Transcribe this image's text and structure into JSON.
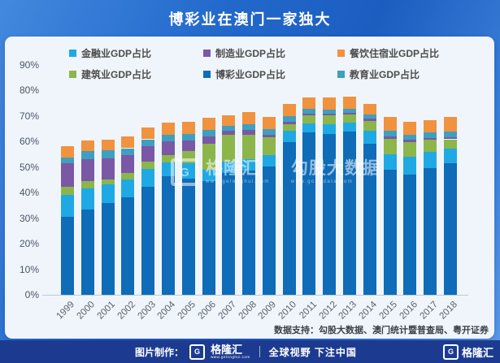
{
  "header": {
    "title": "博彩业在澳门一家独大"
  },
  "chart_data": {
    "type": "bar",
    "stacked": true,
    "title": "博彩业在澳门一家独大",
    "categories": [
      "1999",
      "2000",
      "2001",
      "2002",
      "2003",
      "2004",
      "2005",
      "2006",
      "2007",
      "2008",
      "2009",
      "2010",
      "2011",
      "2012",
      "2013",
      "2014",
      "2015",
      "2016",
      "2017",
      "2018"
    ],
    "series": [
      {
        "name": "博彩业GDP占比",
        "color": "#0e6cb8",
        "values": [
          30.5,
          33.3,
          35.8,
          38.1,
          42.4,
          46.4,
          45.5,
          44.5,
          47.7,
          48.5,
          50.3,
          59.7,
          63.6,
          63.1,
          63.8,
          59.3,
          48.9,
          47.1,
          49.6,
          51.4
        ]
      },
      {
        "name": "金融业GDP占比",
        "color": "#1fa9e4",
        "values": [
          8.7,
          8.5,
          7.6,
          7.2,
          6.9,
          5.5,
          5.9,
          4.5,
          4.3,
          4.7,
          4.5,
          4.4,
          3.5,
          3.7,
          3.7,
          4.8,
          6.2,
          7.1,
          6.4,
          6.0
        ]
      },
      {
        "name": "建筑业GDP占比",
        "color": "#8cb64a",
        "values": [
          3.0,
          2.7,
          1.9,
          2.4,
          2.8,
          2.7,
          4.8,
          10.0,
          10.6,
          9.5,
          7.0,
          2.7,
          3.1,
          3.5,
          3.0,
          3.9,
          6.1,
          5.7,
          4.6,
          3.5
        ]
      },
      {
        "name": "制造业GDP占比",
        "color": "#7a58a5",
        "values": [
          9.2,
          8.7,
          8.2,
          6.9,
          6.2,
          5.6,
          4.2,
          3.1,
          1.6,
          1.7,
          1.0,
          1.0,
          0.8,
          0.7,
          0.7,
          0.9,
          0.8,
          0.7,
          0.9,
          0.8
        ]
      },
      {
        "name": "教育业GDP占比",
        "color": "#3e9fc1",
        "values": [
          2.4,
          3.0,
          3.2,
          2.8,
          2.6,
          2.3,
          2.7,
          2.4,
          2.1,
          2.4,
          2.2,
          2.2,
          1.8,
          1.6,
          1.7,
          1.6,
          2.1,
          2.1,
          2.1,
          2.1
        ]
      },
      {
        "name": "餐饮住宿业GDP占比",
        "color": "#f0923e",
        "values": [
          4.3,
          4.2,
          4.2,
          4.6,
          4.6,
          4.8,
          4.7,
          4.8,
          3.9,
          4.8,
          4.6,
          4.7,
          4.6,
          4.8,
          4.7,
          4.2,
          5.5,
          5.1,
          4.8,
          5.8
        ]
      }
    ],
    "ylim": [
      0,
      90
    ],
    "ytick_step": 10,
    "ytick_suffix": "%",
    "grid": false,
    "legend_position": "top"
  },
  "watermark": {
    "logo_letter": "G",
    "brand": "格隆汇",
    "brand_url": "www.gelonghui.com",
    "partner": "勾股大数据",
    "partner_url": "www.gogudata.com"
  },
  "source_note": "数据支持：勾股大数据、澳门统计暨普查局、粤开证券",
  "footer": {
    "credit_label": "图片制作：",
    "logo_letter": "G",
    "brand": "格隆汇",
    "brand_url": "www.gelonghui.com",
    "slogan": "全球视野 下注中国"
  }
}
